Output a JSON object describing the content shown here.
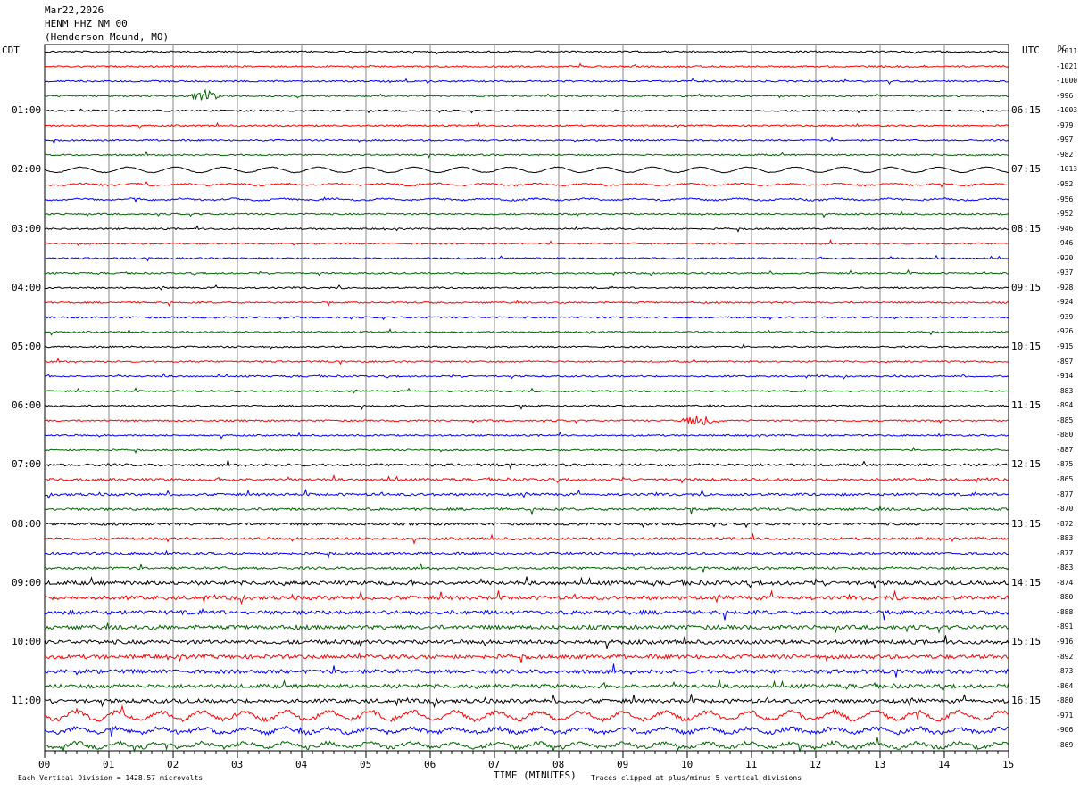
{
  "header": {
    "date": "Mar22,2026",
    "station": "HENM HHZ NM 00",
    "location": "(Henderson Mound, MO)"
  },
  "left_zone": "CDT",
  "right_zone": "UTC",
  "dc_label": "DC",
  "chart_data": {
    "type": "line",
    "title": "",
    "xlabel": "TIME (MINUTES)",
    "xlim": [
      0,
      15
    ],
    "x_ticks": [
      "00",
      "01",
      "02",
      "03",
      "04",
      "05",
      "06",
      "07",
      "08",
      "09",
      "10",
      "11",
      "12",
      "13",
      "14",
      "15"
    ],
    "trace_colors": [
      "#000000",
      "#ff0000",
      "#0000ff",
      "#006400"
    ],
    "left_hour_labels": [
      "01:00",
      "02:00",
      "03:00",
      "04:00",
      "05:00",
      "06:00",
      "07:00",
      "08:00",
      "09:00",
      "10:00",
      "11:00"
    ],
    "right_hour_labels": [
      "06:15",
      "07:15",
      "08:15",
      "09:15",
      "10:15",
      "11:15",
      "12:15",
      "13:15",
      "14:15",
      "15:15",
      "16:15"
    ],
    "dc_offsets": [
      "-1011",
      "-1021",
      "-1000",
      "-996",
      "-1003",
      "-979",
      "-997",
      "-982",
      "-1013",
      "-952",
      "-956",
      "-952",
      "-946",
      "-946",
      "-920",
      "-937",
      "-928",
      "-924",
      "-939",
      "-926",
      "-915",
      "-897",
      "-914",
      "-883",
      "-894",
      "-885",
      "-880",
      "-887",
      "-875",
      "-865",
      "-877",
      "-870",
      "-872",
      "-883",
      "-877",
      "-883",
      "-874",
      "-880",
      "-888",
      "-891",
      "-916",
      "-892",
      "-873",
      "-864",
      "-880",
      "-971",
      "-906",
      "-869"
    ],
    "events": [
      {
        "trace": 3,
        "minute": 2.5,
        "amplitude": "event"
      },
      {
        "trace": 25,
        "minute": 10.2,
        "amplitude": "event"
      }
    ]
  },
  "footer": {
    "scale": "Each Vertical Division = 1428.57 microvolts",
    "clip": "Traces clipped at plus/minus 5 vertical divisions"
  }
}
